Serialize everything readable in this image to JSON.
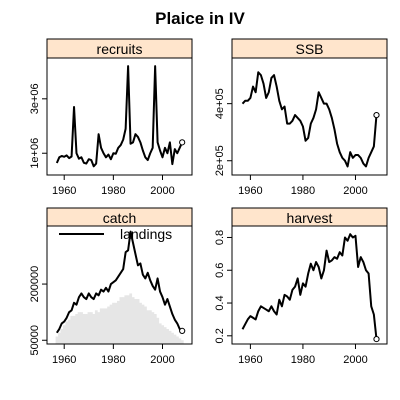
{
  "title": "Plaice in IV",
  "colors": {
    "strip": "#ffe5cc",
    "line": "#000000",
    "bars": "#e6e6e6"
  },
  "chart_data": [
    {
      "type": "line",
      "panel": "recruits",
      "x": [
        1957,
        1958,
        1959,
        1960,
        1961,
        1962,
        1963,
        1964,
        1965,
        1966,
        1967,
        1968,
        1969,
        1970,
        1971,
        1972,
        1973,
        1974,
        1975,
        1976,
        1977,
        1978,
        1979,
        1980,
        1981,
        1982,
        1983,
        1984,
        1985,
        1986,
        1987,
        1988,
        1989,
        1990,
        1991,
        1992,
        1993,
        1994,
        1995,
        1996,
        1997,
        1998,
        1999,
        2000,
        2001,
        2002,
        2003,
        2004,
        2005,
        2006,
        2007,
        2008
      ],
      "values": [
        640000,
        850000,
        900000,
        870000,
        920000,
        820000,
        880000,
        2700000,
        1000000,
        800000,
        850000,
        650000,
        620000,
        780000,
        750000,
        520000,
        620000,
        1700000,
        1200000,
        1000000,
        850000,
        950000,
        780000,
        1000000,
        980000,
        1200000,
        1300000,
        1500000,
        1900000,
        4200000,
        1350000,
        1400000,
        1700000,
        1600000,
        1400000,
        1100000,
        850000,
        750000,
        1000000,
        1200000,
        4200000,
        1400000,
        1100000,
        850000,
        1200000,
        1000000,
        1400000,
        600000,
        1150000,
        1000000,
        1200000,
        1400000
      ],
      "ylim": [
        200000,
        4500000
      ],
      "xlim": [
        1953,
        2012
      ],
      "yticks": [
        1000000,
        3000000
      ],
      "ytick_labels": [
        "1e+06",
        "3e+06"
      ],
      "xticks": [
        1960,
        1980,
        2000
      ],
      "end_marker": true
    },
    {
      "type": "line",
      "panel": "SSB",
      "x": [
        1957,
        1958,
        1959,
        1960,
        1961,
        1962,
        1963,
        1964,
        1965,
        1966,
        1967,
        1968,
        1969,
        1970,
        1971,
        1972,
        1973,
        1974,
        1975,
        1976,
        1977,
        1978,
        1979,
        1980,
        1981,
        1982,
        1983,
        1984,
        1985,
        1986,
        1987,
        1988,
        1989,
        1990,
        1991,
        1992,
        1993,
        1994,
        1995,
        1996,
        1997,
        1998,
        1999,
        2000,
        2001,
        2002,
        2003,
        2004,
        2005,
        2006,
        2007,
        2008
      ],
      "values": [
        400000,
        410000,
        410000,
        420000,
        460000,
        440000,
        510000,
        500000,
        470000,
        420000,
        440000,
        490000,
        500000,
        460000,
        410000,
        380000,
        390000,
        330000,
        330000,
        340000,
        360000,
        350000,
        340000,
        320000,
        270000,
        280000,
        330000,
        350000,
        380000,
        440000,
        420000,
        400000,
        400000,
        380000,
        350000,
        310000,
        260000,
        230000,
        210000,
        200000,
        180000,
        230000,
        210000,
        220000,
        220000,
        210000,
        190000,
        180000,
        210000,
        230000,
        250000,
        360000
      ],
      "ylim": [
        150000,
        560000
      ],
      "xlim": [
        1953,
        2012
      ],
      "yticks": [
        200000,
        400000
      ],
      "ytick_labels": [
        "2e+05",
        "4e+05"
      ],
      "xticks": [
        1960,
        1980,
        2000
      ],
      "end_marker": true
    },
    {
      "type": "line",
      "panel": "catch",
      "legend": [
        "landings"
      ],
      "x": [
        1957,
        1958,
        1959,
        1960,
        1961,
        1962,
        1963,
        1964,
        1965,
        1966,
        1967,
        1968,
        1969,
        1970,
        1971,
        1972,
        1973,
        1974,
        1975,
        1976,
        1977,
        1978,
        1979,
        1980,
        1981,
        1982,
        1983,
        1984,
        1985,
        1986,
        1987,
        1988,
        1989,
        1990,
        1991,
        1992,
        1993,
        1994,
        1995,
        1996,
        1997,
        1998,
        1999,
        2000,
        2001,
        2002,
        2003,
        2004,
        2005,
        2006,
        2007,
        2008
      ],
      "values": [
        70000,
        80000,
        95000,
        100000,
        110000,
        125000,
        130000,
        150000,
        145000,
        165000,
        175000,
        165000,
        160000,
        175000,
        165000,
        160000,
        175000,
        170000,
        185000,
        180000,
        190000,
        180000,
        200000,
        205000,
        210000,
        220000,
        230000,
        240000,
        285000,
        290000,
        340000,
        310000,
        280000,
        250000,
        255000,
        225000,
        215000,
        230000,
        210000,
        195000,
        185000,
        215000,
        180000,
        165000,
        145000,
        160000,
        140000,
        120000,
        105000,
        95000,
        80000,
        75000
      ],
      "bars": [
        60000,
        70000,
        80000,
        90000,
        100000,
        105000,
        115000,
        115000,
        120000,
        125000,
        125000,
        120000,
        120000,
        125000,
        125000,
        120000,
        130000,
        125000,
        135000,
        135000,
        135000,
        140000,
        145000,
        150000,
        150000,
        155000,
        165000,
        165000,
        170000,
        170000,
        175000,
        165000,
        160000,
        160000,
        150000,
        145000,
        140000,
        130000,
        130000,
        125000,
        120000,
        110000,
        95000,
        90000,
        85000,
        80000,
        75000,
        70000,
        65000,
        60000,
        55000,
        50000
      ],
      "ylim": [
        40000,
        355000
      ],
      "xlim": [
        1953,
        2012
      ],
      "yticks": [
        50000,
        200000
      ],
      "ytick_labels": [
        "50000",
        "200000"
      ],
      "xticks": [
        1960,
        1980,
        2000
      ],
      "end_marker": true
    },
    {
      "type": "line",
      "panel": "harvest",
      "x": [
        1957,
        1958,
        1959,
        1960,
        1961,
        1962,
        1963,
        1964,
        1965,
        1966,
        1967,
        1968,
        1969,
        1970,
        1971,
        1972,
        1973,
        1974,
        1975,
        1976,
        1977,
        1978,
        1979,
        1980,
        1981,
        1982,
        1983,
        1984,
        1985,
        1986,
        1987,
        1988,
        1989,
        1990,
        1991,
        1992,
        1993,
        1994,
        1995,
        1996,
        1997,
        1998,
        1999,
        2000,
        2001,
        2002,
        2003,
        2004,
        2005,
        2006,
        2007,
        2008
      ],
      "values": [
        0.24,
        0.27,
        0.3,
        0.32,
        0.31,
        0.3,
        0.35,
        0.38,
        0.37,
        0.36,
        0.35,
        0.38,
        0.35,
        0.33,
        0.42,
        0.38,
        0.45,
        0.44,
        0.42,
        0.48,
        0.5,
        0.55,
        0.45,
        0.52,
        0.5,
        0.58,
        0.64,
        0.6,
        0.65,
        0.62,
        0.55,
        0.6,
        0.72,
        0.65,
        0.66,
        0.68,
        0.67,
        0.71,
        0.69,
        0.8,
        0.78,
        0.82,
        0.8,
        0.81,
        0.62,
        0.68,
        0.65,
        0.6,
        0.58,
        0.38,
        0.33,
        0.18
      ],
      "ylim": [
        0.15,
        0.87
      ],
      "xlim": [
        1953,
        2012
      ],
      "yticks": [
        0.2,
        0.4,
        0.6,
        0.8
      ],
      "ytick_labels": [
        "0.2",
        "0.4",
        "0.6",
        "0.8"
      ],
      "xticks": [
        1960,
        1980,
        2000
      ],
      "end_marker": true
    }
  ]
}
